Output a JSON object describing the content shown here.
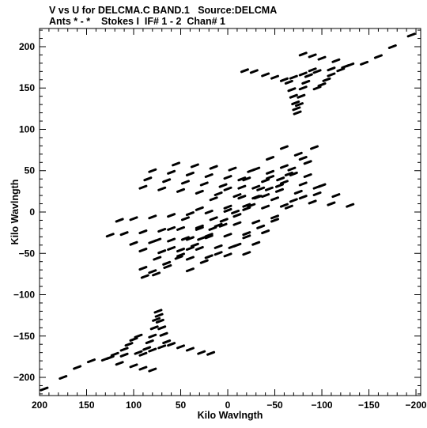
{
  "chart_data": {
    "type": "scatter",
    "title": "V vs U for DELCMA.C BAND.1   Source:DELCMA",
    "subtitle": "Ants * - *    Stokes I  IF# 1 - 2  Chan# 1",
    "xlabel": "Kilo Wavlngth",
    "ylabel": "Kilo Wavlngth",
    "xlim": [
      200,
      -205
    ],
    "ylim": [
      -222,
      222
    ],
    "x_ticks": [
      200,
      150,
      100,
      50,
      0,
      -50,
      -100,
      -150,
      -200
    ],
    "y_ticks": [
      200,
      150,
      100,
      50,
      0,
      -50,
      -100,
      -150,
      -200
    ],
    "grid": false,
    "color": "#000000",
    "series": [
      {
        "points": [
          [
            -195,
            214
          ],
          [
            -175,
            200
          ],
          [
            -160,
            188
          ],
          [
            -145,
            180
          ],
          [
            -125,
            176
          ],
          [
            -110,
            173
          ],
          [
            -95,
            170
          ],
          [
            -80,
            167
          ],
          [
            -70,
            163
          ],
          [
            -60,
            160
          ],
          [
            -50,
            163
          ],
          [
            -40,
            166
          ],
          [
            -28,
            170
          ],
          [
            -18,
            171
          ],
          [
            -130,
            178
          ],
          [
            -115,
            183
          ],
          [
            -100,
            186
          ],
          [
            -90,
            189
          ],
          [
            -80,
            191
          ],
          [
            -120,
            172
          ],
          [
            -110,
            166
          ],
          [
            -105,
            160
          ],
          [
            -100,
            154
          ],
          [
            -95,
            150
          ],
          [
            -90,
            172
          ],
          [
            -86,
            165
          ],
          [
            -83,
            157
          ],
          [
            -80,
            150
          ],
          [
            -78,
            140
          ],
          [
            -76,
            130
          ],
          [
            -74,
            120
          ],
          [
            -65,
            157
          ],
          [
            -68,
            148
          ],
          [
            -70,
            140
          ],
          [
            -72,
            132
          ],
          [
            -73,
            125
          ],
          [
            195,
            -214
          ],
          [
            175,
            -200
          ],
          [
            160,
            -188
          ],
          [
            145,
            -180
          ],
          [
            125,
            -176
          ],
          [
            110,
            -173
          ],
          [
            95,
            -170
          ],
          [
            80,
            -167
          ],
          [
            70,
            -163
          ],
          [
            60,
            -160
          ],
          [
            50,
            -163
          ],
          [
            40,
            -166
          ],
          [
            28,
            -170
          ],
          [
            18,
            -171
          ],
          [
            130,
            -178
          ],
          [
            115,
            -183
          ],
          [
            100,
            -186
          ],
          [
            90,
            -189
          ],
          [
            80,
            -191
          ],
          [
            120,
            -172
          ],
          [
            110,
            -166
          ],
          [
            105,
            -160
          ],
          [
            100,
            -154
          ],
          [
            95,
            -150
          ],
          [
            90,
            -172
          ],
          [
            86,
            -165
          ],
          [
            83,
            -157
          ],
          [
            80,
            -150
          ],
          [
            78,
            -140
          ],
          [
            76,
            -130
          ],
          [
            74,
            -120
          ],
          [
            65,
            -157
          ],
          [
            68,
            -148
          ],
          [
            70,
            -140
          ],
          [
            72,
            -132
          ],
          [
            73,
            -125
          ],
          [
            -92,
            78
          ],
          [
            -80,
            65
          ],
          [
            -68,
            52
          ],
          [
            -56,
            40
          ],
          [
            -44,
            28
          ],
          [
            -32,
            18
          ],
          [
            -20,
            8
          ],
          [
            -8,
            0
          ],
          [
            4,
            -10
          ],
          [
            16,
            -20
          ],
          [
            28,
            -32
          ],
          [
            40,
            -44
          ],
          [
            52,
            -55
          ],
          [
            64,
            -66
          ],
          [
            76,
            -75
          ],
          [
            88,
            -78
          ],
          [
            -75,
            70
          ],
          [
            -60,
            55
          ],
          [
            -45,
            42
          ],
          [
            -30,
            30
          ],
          [
            -15,
            18
          ],
          [
            0,
            6
          ],
          [
            15,
            -8
          ],
          [
            30,
            -20
          ],
          [
            45,
            -32
          ],
          [
            60,
            -44
          ],
          [
            75,
            -56
          ],
          [
            90,
            -68
          ],
          [
            -85,
            60
          ],
          [
            -70,
            46
          ],
          [
            -55,
            32
          ],
          [
            -40,
            20
          ],
          [
            -25,
            8
          ],
          [
            -10,
            -4
          ],
          [
            5,
            -16
          ],
          [
            20,
            -28
          ],
          [
            35,
            -40
          ],
          [
            50,
            -52
          ],
          [
            65,
            -62
          ],
          [
            80,
            -72
          ],
          [
            -60,
            78
          ],
          [
            -45,
            65
          ],
          [
            -30,
            52
          ],
          [
            -15,
            40
          ],
          [
            0,
            28
          ],
          [
            15,
            16
          ],
          [
            30,
            4
          ],
          [
            45,
            -8
          ],
          [
            60,
            -20
          ],
          [
            75,
            -34
          ],
          [
            90,
            -46
          ],
          [
            -95,
            30
          ],
          [
            -80,
            18
          ],
          [
            -65,
            6
          ],
          [
            -50,
            -6
          ],
          [
            -35,
            -18
          ],
          [
            -20,
            -30
          ],
          [
            -5,
            -42
          ],
          [
            10,
            -50
          ],
          [
            25,
            -60
          ],
          [
            40,
            -70
          ],
          [
            -130,
            8
          ],
          [
            -110,
            10
          ],
          [
            -90,
            12
          ],
          [
            -70,
            14
          ],
          [
            -50,
            16
          ],
          [
            -30,
            18
          ],
          [
            -10,
            20
          ],
          [
            10,
            22
          ],
          [
            30,
            24
          ],
          [
            50,
            26
          ],
          [
            70,
            28
          ],
          [
            90,
            30
          ],
          [
            -115,
            20
          ],
          [
            -95,
            22
          ],
          [
            -75,
            24
          ],
          [
            -55,
            26
          ],
          [
            -35,
            28
          ],
          [
            -15,
            30
          ],
          [
            5,
            32
          ],
          [
            25,
            34
          ],
          [
            45,
            36
          ],
          [
            65,
            38
          ],
          [
            85,
            40
          ],
          [
            -100,
            32
          ],
          [
            -80,
            34
          ],
          [
            -60,
            36
          ],
          [
            -40,
            38
          ],
          [
            -20,
            40
          ],
          [
            0,
            42
          ],
          [
            20,
            44
          ],
          [
            40,
            46
          ],
          [
            60,
            48
          ],
          [
            80,
            50
          ],
          [
            -85,
            44
          ],
          [
            -65,
            46
          ],
          [
            -45,
            48
          ],
          [
            -25,
            50
          ],
          [
            -5,
            52
          ],
          [
            15,
            54
          ],
          [
            35,
            56
          ],
          [
            55,
            58
          ],
          [
            -60,
            8
          ],
          [
            -40,
            6
          ],
          [
            -20,
            4
          ],
          [
            0,
            2
          ],
          [
            20,
            0
          ],
          [
            40,
            -2
          ],
          [
            60,
            -4
          ],
          [
            80,
            -6
          ],
          [
            100,
            -8
          ],
          [
            115,
            -10
          ],
          [
            -50,
            -10
          ],
          [
            -30,
            -12
          ],
          [
            -10,
            -14
          ],
          [
            10,
            -16
          ],
          [
            30,
            -18
          ],
          [
            50,
            -20
          ],
          [
            70,
            -22
          ],
          [
            90,
            -24
          ],
          [
            110,
            -26
          ],
          [
            125,
            -28
          ],
          [
            -40,
            -24
          ],
          [
            -20,
            -26
          ],
          [
            0,
            -28
          ],
          [
            20,
            -30
          ],
          [
            40,
            -32
          ],
          [
            60,
            -34
          ],
          [
            80,
            -36
          ],
          [
            100,
            -38
          ],
          [
            -30,
            -38
          ],
          [
            -10,
            -40
          ],
          [
            10,
            -42
          ],
          [
            30,
            -44
          ],
          [
            50,
            -46
          ],
          [
            70,
            -48
          ],
          [
            -20,
            -50
          ],
          [
            0,
            -52
          ],
          [
            20,
            -54
          ],
          [
            40,
            -56
          ]
        ]
      }
    ]
  }
}
